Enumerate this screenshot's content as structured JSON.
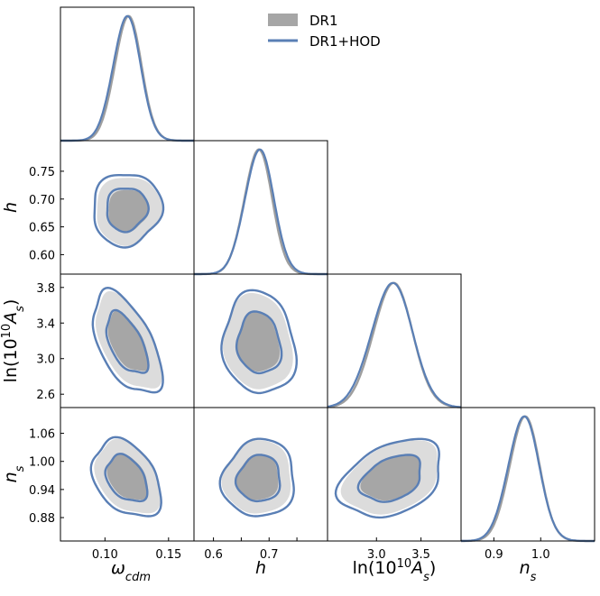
{
  "chart_data": {
    "type": "corner",
    "parameters": [
      {
        "key": "omega",
        "label_main": "ω",
        "label_sub": "cdm",
        "range": [
          0.065,
          0.17
        ],
        "ticks": [
          0.1,
          0.15
        ],
        "tick_labels": [
          "0.10",
          "0.15"
        ]
      },
      {
        "key": "h",
        "label_main": "h",
        "label_sub": "",
        "range": [
          0.565,
          0.805
        ],
        "ticks": [
          0.6,
          0.65,
          0.7,
          0.75
        ],
        "tick_labels": [
          "0.60",
          "0.65",
          "0.70",
          "0.75"
        ],
        "xtick_labels": [
          "0.6",
          "",
          "0.7",
          ""
        ]
      },
      {
        "key": "lnAs",
        "label_main": "ln(10",
        "label_sup": "10",
        "label_sub": "s",
        "range": [
          2.45,
          3.95
        ],
        "ticks": [
          2.6,
          3.0,
          3.4,
          3.8
        ],
        "tick_labels": [
          "2.6",
          "3.0",
          "3.4",
          "3.8"
        ],
        "xticks": [
          3.0,
          3.5
        ],
        "xtick_labels": [
          "3.0",
          "3.5"
        ]
      },
      {
        "key": "ns",
        "label_main": "n",
        "label_sub": "s",
        "range": [
          0.83,
          1.115
        ],
        "ticks": [
          0.88,
          0.94,
          1.0,
          1.06
        ],
        "tick_labels": [
          "0.88",
          "0.94",
          "1.00",
          "1.06"
        ],
        "xticks": [
          0.9,
          1.0
        ],
        "xtick_labels": [
          "0.9",
          "1.0"
        ]
      }
    ],
    "axis_labels": {
      "omega": "ω",
      "omega_sub": "cdm",
      "h": "h",
      "lnAs_pre": "ln(10",
      "lnAs_sup": "10",
      "lnAs_mid": "A",
      "lnAs_sub": "s",
      "lnAs_post": ")",
      "ns": "n",
      "ns_sub": "s"
    },
    "series": [
      {
        "name": "DR1",
        "style": "filled",
        "color_inner": "#a6a6a6",
        "color_outer": "#dcdcdc",
        "means": {
          "omega": 0.118,
          "h": 0.68,
          "lnAs": 3.18,
          "ns": 0.965
        },
        "sigmas": {
          "omega": 0.0105,
          "h": 0.025,
          "lnAs": 0.22,
          "ns": 0.032
        }
      },
      {
        "name": "DR1+HOD",
        "style": "line",
        "color": "#5a7fb5",
        "means": {
          "omega": 0.117,
          "h": 0.682,
          "lnAs": 3.17,
          "ns": 0.963
        },
        "sigmas": {
          "omega": 0.0108,
          "h": 0.026,
          "lnAs": 0.23,
          "ns": 0.033
        }
      }
    ],
    "correlations": {
      "h_omega": 0.05,
      "lnAs_omega": -0.55,
      "lnAs_h": -0.1,
      "ns_omega": -0.35,
      "ns_h": 0.05,
      "ns_lnAs": 0.35
    },
    "contour_levels": [
      "68%",
      "95%"
    ],
    "legend": {
      "position": "top-right",
      "entries": [
        "DR1",
        "DR1+HOD"
      ]
    }
  }
}
